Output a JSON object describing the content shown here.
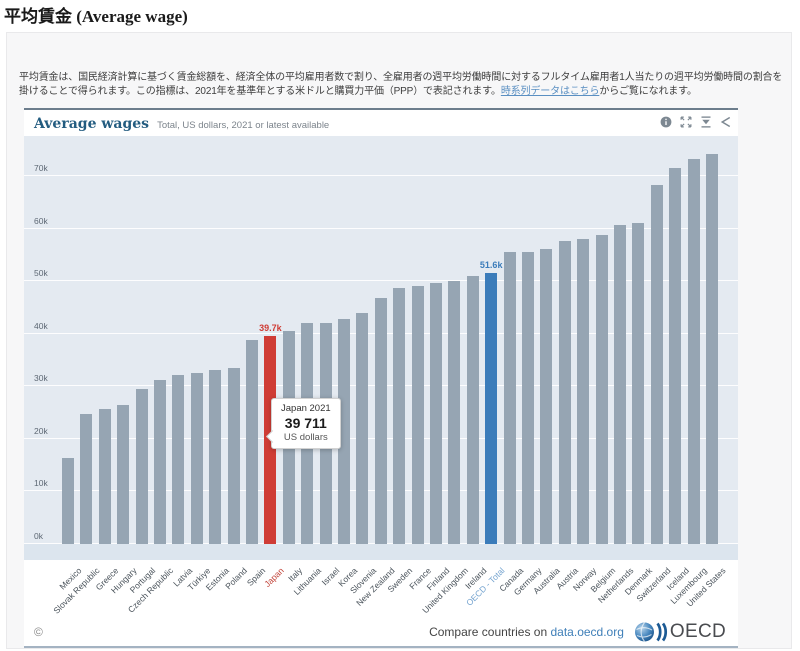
{
  "page": {
    "title": "平均賃金 (Average wage)",
    "description_part1": "平均賃金は、国民経済計算に基づく賃金総額を、経済全体の平均雇用者数で割り、全雇用者の週平均労働時間に対するフルタイム雇用者1人当たりの週平均労働時間の割合を掛けることで得られます。この指標は、2021年を基準年とする米ドルと購買力平価（PPP）で表記されます。",
    "description_link": "時系列データはこちら",
    "description_part2": "からご覧になれます。"
  },
  "chart": {
    "title": "Average wages",
    "subtitle": "Total, US dollars, 2021 or latest available",
    "toolbar_icons": [
      "info-icon",
      "fullscreen-icon",
      "download-icon",
      "share-icon"
    ],
    "tooltip": {
      "line1": "Japan 2021",
      "value": "39 711",
      "unit": "US dollars"
    },
    "footer": {
      "copyright": "©",
      "compare_text": "Compare countries on",
      "compare_link": "data.oecd.org",
      "logo_text": "OECD"
    }
  },
  "colors": {
    "bar_default": "#96a5b3",
    "bar_japan": "#cf3c35",
    "bar_oecd": "#3b7cba",
    "plot_background": "#e4eaf1",
    "header_title": "#235c80",
    "link": "#4a90d2"
  },
  "chart_data": {
    "type": "bar",
    "title": "Average wages",
    "subtitle": "Total, US dollars, 2021 or latest available",
    "unit": "US dollars (thousands)",
    "categories": [
      "Mexico",
      "Slovak Republic",
      "Greece",
      "Hungary",
      "Portugal",
      "Czech Republic",
      "Latvia",
      "Türkiye",
      "Estonia",
      "Poland",
      "Spain",
      "Japan",
      "Italy",
      "Lithuania",
      "Israel",
      "Korea",
      "Slovenia",
      "New Zealand",
      "Sweden",
      "France",
      "Finland",
      "United Kingdom",
      "Ireland",
      "OECD - Total",
      "Canada",
      "Germany",
      "Australia",
      "Austria",
      "Norway",
      "Belgium",
      "Netherlands",
      "Denmark",
      "Switzerland",
      "Iceland",
      "Luxembourg",
      "United States"
    ],
    "values": [
      16.4,
      24.8,
      25.7,
      26.4,
      29.6,
      31.3,
      32.1,
      32.5,
      33.1,
      33.5,
      38.9,
      39.7,
      40.5,
      42.0,
      42.1,
      42.9,
      43.9,
      46.8,
      48.8,
      49.1,
      49.7,
      50.0,
      51.1,
      51.6,
      55.7,
      55.7,
      56.2,
      57.7,
      58.0,
      58.9,
      60.7,
      61.1,
      68.4,
      71.6,
      73.4,
      74.3
    ],
    "highlighted": [
      {
        "category": "Japan",
        "value_label": "39.7k"
      },
      {
        "category": "OECD - Total",
        "value_label": "51.6k"
      }
    ],
    "bar_colors": {
      "default": "#96a5b3",
      "Japan": "#cf3c35",
      "OECD - Total": "#3b7cba"
    },
    "label_colors": {
      "default": "#4c555d",
      "Japan": "#c2453b",
      "OECD - Total": "#74a3cf"
    },
    "ylim": [
      0,
      77.7
    ],
    "ytick_labels": [
      "0k",
      "10k",
      "20k",
      "30k",
      "40k",
      "50k",
      "60k",
      "70k"
    ],
    "grid": true,
    "legend": false,
    "xlabel": "",
    "ylabel": ""
  }
}
